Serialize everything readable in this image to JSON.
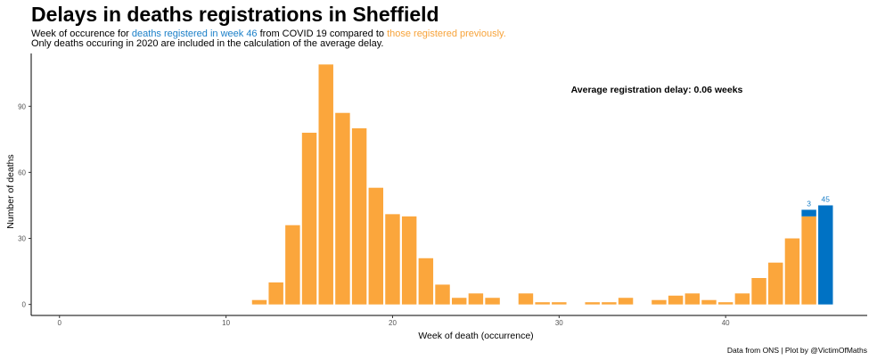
{
  "header": {
    "title": "Delays in deaths registrations in Sheffield",
    "subtitle_part1": "Week of occurence for ",
    "subtitle_blue": "deaths registered in week 46",
    "subtitle_part2": " from COVID 19 compared to ",
    "subtitle_orange": "those registered previously.",
    "subtitle_line2": "Only deaths occuring in 2020 are included in the calculation of the average delay."
  },
  "colors": {
    "previous": "#fba63c",
    "current": "#0072c4",
    "current_text": "#1a7fc8"
  },
  "caption": "Data from ONS | Plot by @VictimOfMaths",
  "chart_data": {
    "type": "bar",
    "stacked": true,
    "xlabel": "Week of death (occurrence)",
    "ylabel": "Number of deaths",
    "xlim": [
      -1.7,
      48.5
    ],
    "ylim": [
      -5,
      114
    ],
    "xticks": [
      0,
      10,
      20,
      30,
      40
    ],
    "yticks": [
      0,
      30,
      60,
      90
    ],
    "grid": false,
    "annotation": "Average registration delay: 0.06 weeks",
    "weeks": [
      12,
      13,
      14,
      15,
      16,
      17,
      18,
      19,
      20,
      21,
      22,
      23,
      24,
      25,
      26,
      27,
      28,
      29,
      30,
      31,
      32,
      33,
      34,
      35,
      36,
      37,
      38,
      39,
      40,
      41,
      42,
      43,
      44,
      45,
      46
    ],
    "series": [
      {
        "values": [
          2,
          10,
          36,
          78,
          109,
          87,
          80,
          53,
          41,
          40,
          21,
          9,
          3,
          5,
          3,
          0,
          5,
          1,
          1,
          0,
          1,
          1,
          3,
          0,
          2,
          4,
          5,
          2,
          1,
          5,
          12,
          19,
          30,
          40,
          0
        ]
      },
      {
        "values": [
          0,
          0,
          0,
          0,
          0,
          0,
          0,
          0,
          0,
          0,
          0,
          0,
          0,
          0,
          0,
          0,
          0,
          0,
          0,
          0,
          0,
          0,
          0,
          0,
          0,
          0,
          0,
          0,
          0,
          0,
          0,
          0,
          0,
          3,
          45
        ]
      }
    ],
    "data_labels": [
      {
        "week": 45,
        "text": "3"
      },
      {
        "week": 46,
        "text": "45"
      }
    ]
  }
}
